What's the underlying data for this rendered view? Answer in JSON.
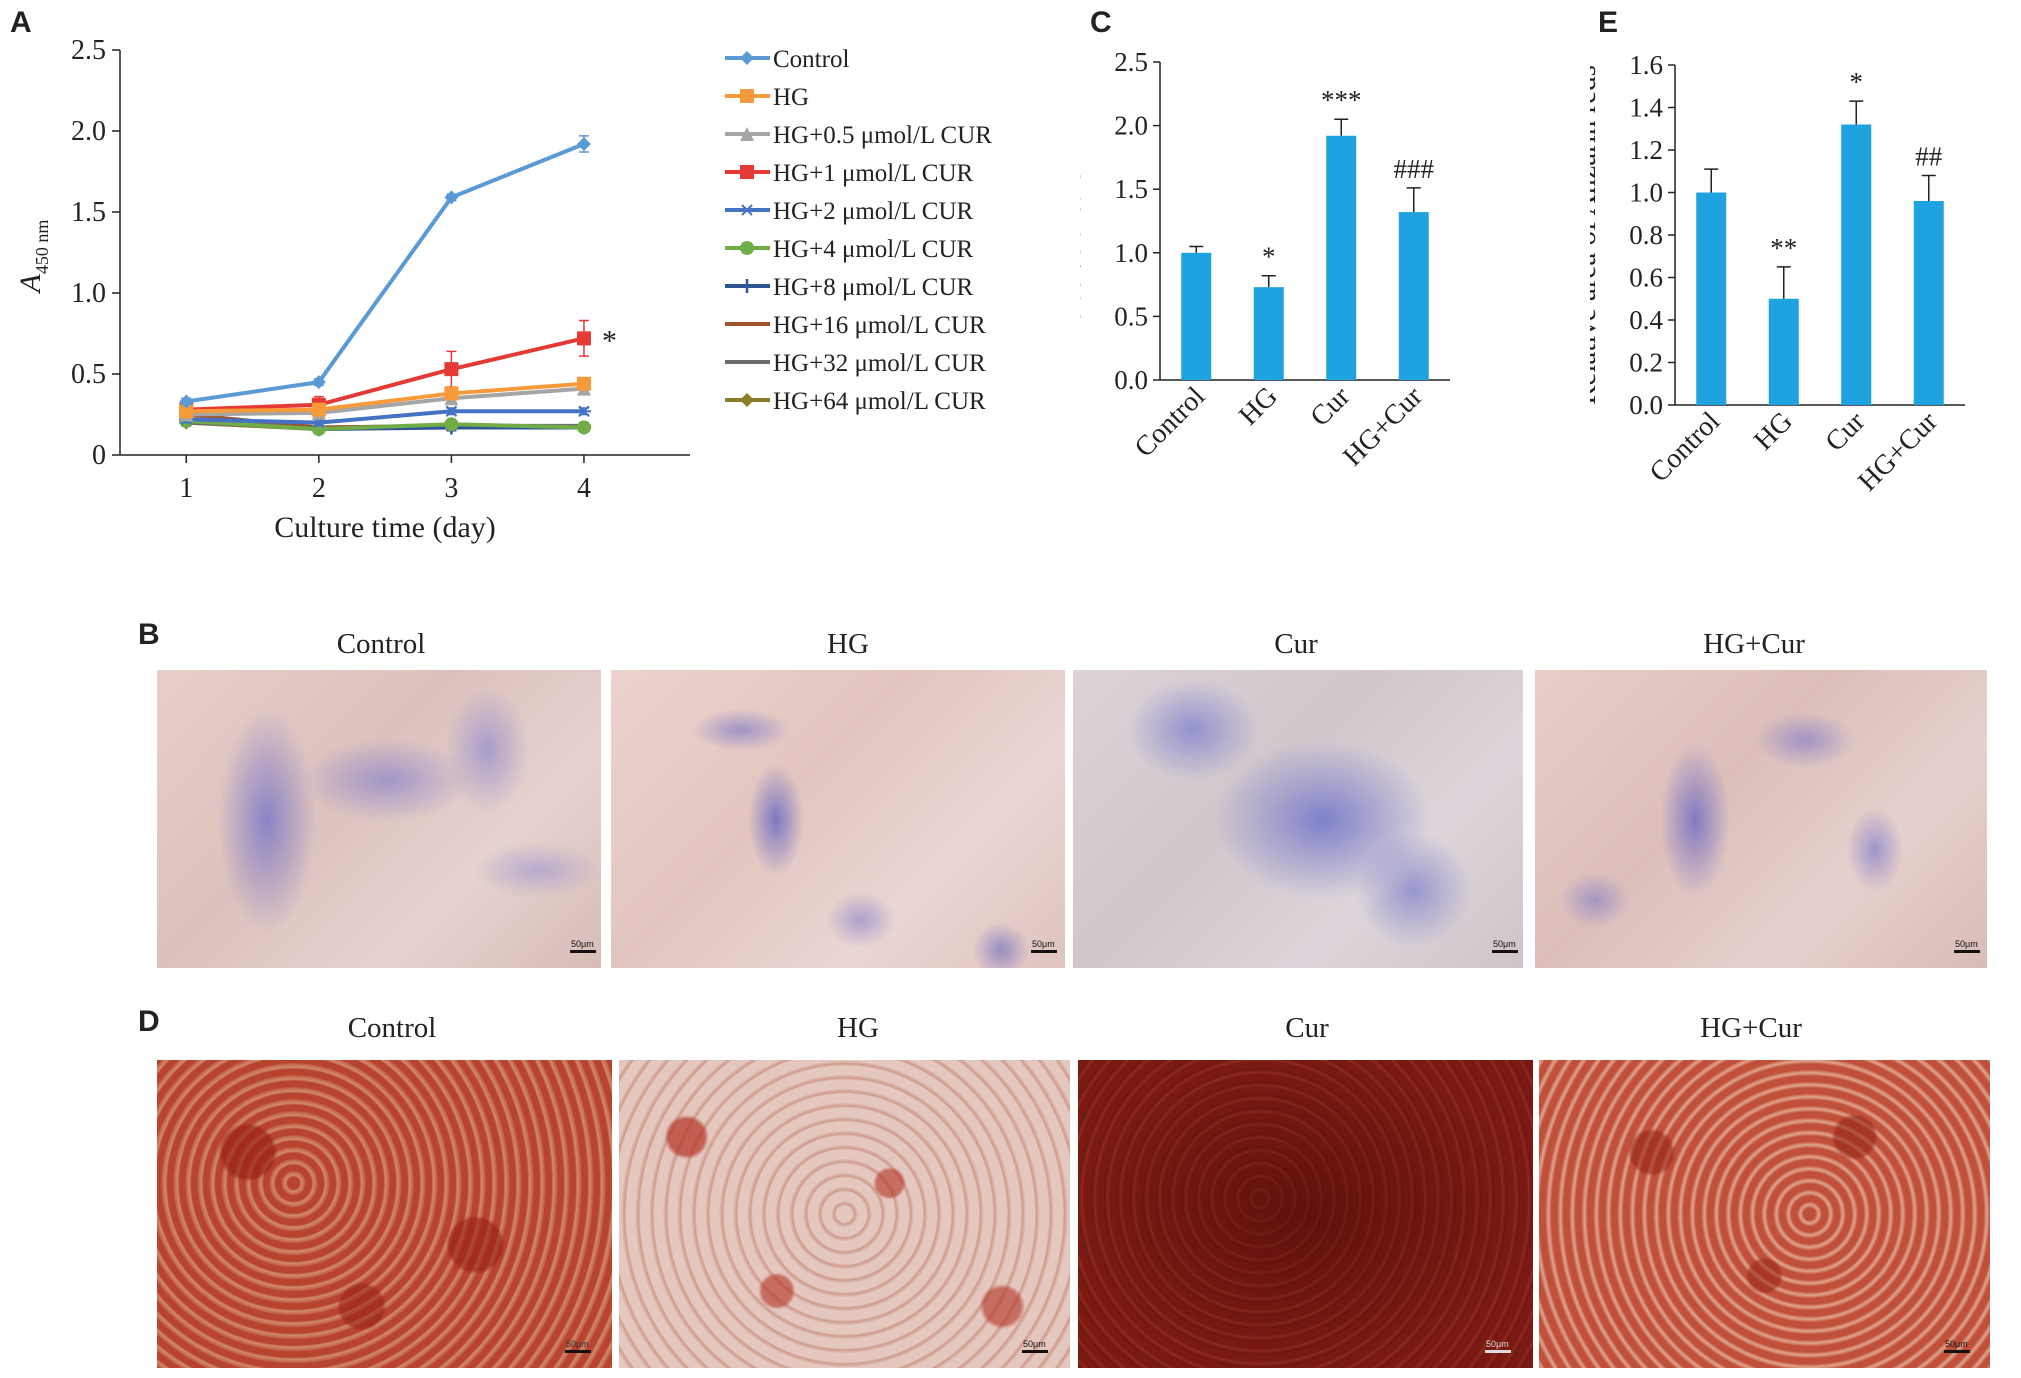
{
  "panels": {
    "a": "A",
    "b": "B",
    "c": "C",
    "d": "D",
    "e": "E"
  },
  "chart_data": [
    {
      "id": "A",
      "type": "line",
      "ylabel": "A",
      "ylabel_sub": "450 nm",
      "xlabel": "Culture time (day)",
      "x": [
        1,
        2,
        3,
        4
      ],
      "ylim": [
        0,
        2.5
      ],
      "yticks": [
        0,
        0.5,
        1.0,
        1.5,
        2.0,
        2.5
      ],
      "ytick_labels": [
        "0",
        "0.5",
        "1.0",
        "1.5",
        "2.0",
        "2.5"
      ],
      "xtick_labels": [
        "1",
        "2",
        "3",
        "4"
      ],
      "legend_position": "right",
      "annotation": "*",
      "series": [
        {
          "name": "Control",
          "color": "#5b9bd5",
          "marker": "diamond",
          "values": [
            0.33,
            0.45,
            1.59,
            1.92
          ],
          "err": [
            0.02,
            0.02,
            0.02,
            0.05
          ]
        },
        {
          "name": "HG",
          "color": "#f79a3a",
          "marker": "square",
          "values": [
            0.27,
            0.28,
            0.38,
            0.44
          ],
          "err": [
            0.02,
            0.02,
            0.03,
            0.03
          ]
        },
        {
          "name": "HG+0.5 μmol/L CUR",
          "color": "#a5a5a5",
          "marker": "triangle",
          "values": [
            0.25,
            0.26,
            0.35,
            0.41
          ],
          "err": [
            0.02,
            0.02,
            0.03,
            0.03
          ]
        },
        {
          "name": "HG+1 μmol/L CUR",
          "color": "#e53935",
          "marker": "square",
          "values": [
            0.28,
            0.31,
            0.53,
            0.72
          ],
          "err": [
            0.05,
            0.05,
            0.11,
            0.11
          ]
        },
        {
          "name": "HG+2 μmol/L CUR",
          "color": "#4472c4",
          "marker": "asterisk",
          "values": [
            0.22,
            0.2,
            0.27,
            0.27
          ],
          "err": [
            0.02,
            0.02,
            0.02,
            0.02
          ]
        },
        {
          "name": "HG+4 μmol/L CUR",
          "color": "#70ad47",
          "marker": "circle",
          "values": [
            0.21,
            0.16,
            0.19,
            0.17
          ],
          "err": [
            0.02,
            0.02,
            0.02,
            0.02
          ]
        },
        {
          "name": "HG+8 μmol/L CUR",
          "color": "#2f5597",
          "marker": "plus",
          "values": [
            0.21,
            0.16,
            0.17,
            0.17
          ],
          "err": [
            0.02,
            0.02,
            0.02,
            0.02
          ]
        },
        {
          "name": "HG+16 μmol/L CUR",
          "color": "#a0522d",
          "marker": "dash",
          "values": [
            0.25,
            0.17,
            0.18,
            0.17
          ],
          "err": [
            0.02,
            0.02,
            0.02,
            0.02
          ]
        },
        {
          "name": "HG+32 μmol/L CUR",
          "color": "#6d6d6d",
          "marker": "dash",
          "values": [
            0.2,
            0.17,
            0.18,
            0.18
          ],
          "err": [
            0.02,
            0.02,
            0.02,
            0.02
          ]
        },
        {
          "name": "HG+64 μmol/L CUR",
          "color": "#8d7a2a",
          "marker": "diamond",
          "values": [
            0.2,
            0.16,
            0.18,
            0.17
          ],
          "err": [
            0.02,
            0.02,
            0.02,
            0.02
          ]
        }
      ]
    },
    {
      "id": "C",
      "type": "bar",
      "ylabel": "Relative area of ALP",
      "categories": [
        "Control",
        "HG",
        "Cur",
        "HG+Cur"
      ],
      "values": [
        1.0,
        0.73,
        1.92,
        1.32
      ],
      "err": [
        0.05,
        0.09,
        0.13,
        0.19
      ],
      "annotations": [
        "",
        "*",
        "***",
        "###"
      ],
      "ylim": [
        0,
        2.5
      ],
      "yticks": [
        0,
        0.5,
        1.0,
        1.5,
        2.0,
        2.5
      ],
      "ytick_labels": [
        "0.0",
        "0.5",
        "1.0",
        "1.5",
        "2.0",
        "2.5"
      ],
      "color": "#1fa3e0"
    },
    {
      "id": "E",
      "type": "bar",
      "ylabel": "Relative area of Alizarin reds",
      "categories": [
        "Control",
        "HG",
        "Cur",
        "HG+Cur"
      ],
      "values": [
        1.0,
        0.5,
        1.32,
        0.96
      ],
      "err": [
        0.11,
        0.15,
        0.11,
        0.12
      ],
      "annotations": [
        "",
        "**",
        "*",
        "##"
      ],
      "ylim": [
        0,
        1.6
      ],
      "yticks": [
        0,
        0.2,
        0.4,
        0.6,
        0.8,
        1.0,
        1.2,
        1.4,
        1.6
      ],
      "ytick_labels": [
        "0.0",
        "0.2",
        "0.4",
        "0.6",
        "0.8",
        "1.0",
        "1.2",
        "1.4",
        "1.6"
      ],
      "color": "#1fa3e0"
    }
  ],
  "alp_images": {
    "titles": [
      "Control",
      "HG",
      "Cur",
      "HG+Cur"
    ],
    "scale_label": "50μm"
  },
  "alizarin_images": {
    "titles": [
      "Control",
      "HG",
      "Cur",
      "HG+Cur"
    ],
    "scale_label": "50μm"
  }
}
